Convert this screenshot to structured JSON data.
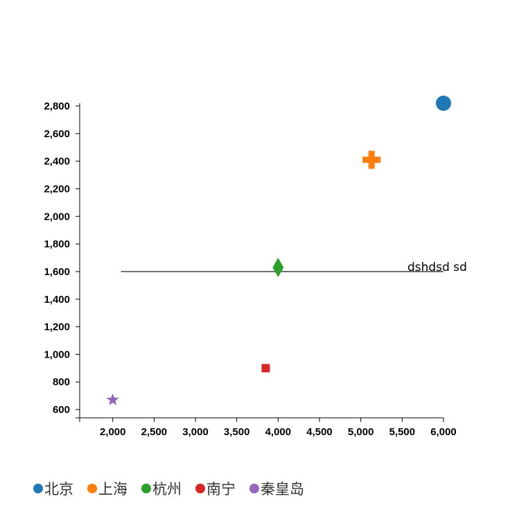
{
  "chart_data": {
    "type": "scatter",
    "title": "",
    "xlabel": "",
    "ylabel": "",
    "xlim": [
      1600,
      6000
    ],
    "ylim": [
      540,
      2820
    ],
    "x_ticks": [
      "2,000",
      "2,500",
      "3,000",
      "3,500",
      "4,000",
      "4,500",
      "5,000",
      "5,500",
      "6,000"
    ],
    "x_tick_values": [
      2000,
      2500,
      3000,
      3500,
      4000,
      4500,
      5000,
      5500,
      6000
    ],
    "y_ticks": [
      "600",
      "800",
      "1,000",
      "1,200",
      "1,400",
      "1,600",
      "1,800",
      "2,000",
      "2,200",
      "2,400",
      "2,600",
      "2,800"
    ],
    "y_tick_values": [
      600,
      800,
      1000,
      1200,
      1400,
      1600,
      1800,
      2000,
      2200,
      2400,
      2600,
      2800
    ],
    "grid": false,
    "legend_position": "bottom-left",
    "series": [
      {
        "name": "北京",
        "color": "#1f77b4",
        "marker": "circle",
        "points": [
          {
            "x": 6000,
            "y": 2820
          }
        ]
      },
      {
        "name": "上海",
        "color": "#ff7f0e",
        "marker": "cross",
        "points": [
          {
            "x": 5130,
            "y": 2410
          }
        ]
      },
      {
        "name": "杭州",
        "color": "#2ca02c",
        "marker": "diamond",
        "points": [
          {
            "x": 4000,
            "y": 1630
          }
        ]
      },
      {
        "name": "南宁",
        "color": "#d62728",
        "marker": "square",
        "points": [
          {
            "x": 3850,
            "y": 900
          }
        ]
      },
      {
        "name": "秦皇岛",
        "color": "#9467bd",
        "marker": "star",
        "points": [
          {
            "x": 2000,
            "y": 670
          }
        ]
      }
    ],
    "annotations": [
      {
        "type": "hline",
        "y": 1600,
        "x_start": 2100,
        "x_end": 6000,
        "label": "dshdsd sd"
      }
    ]
  }
}
